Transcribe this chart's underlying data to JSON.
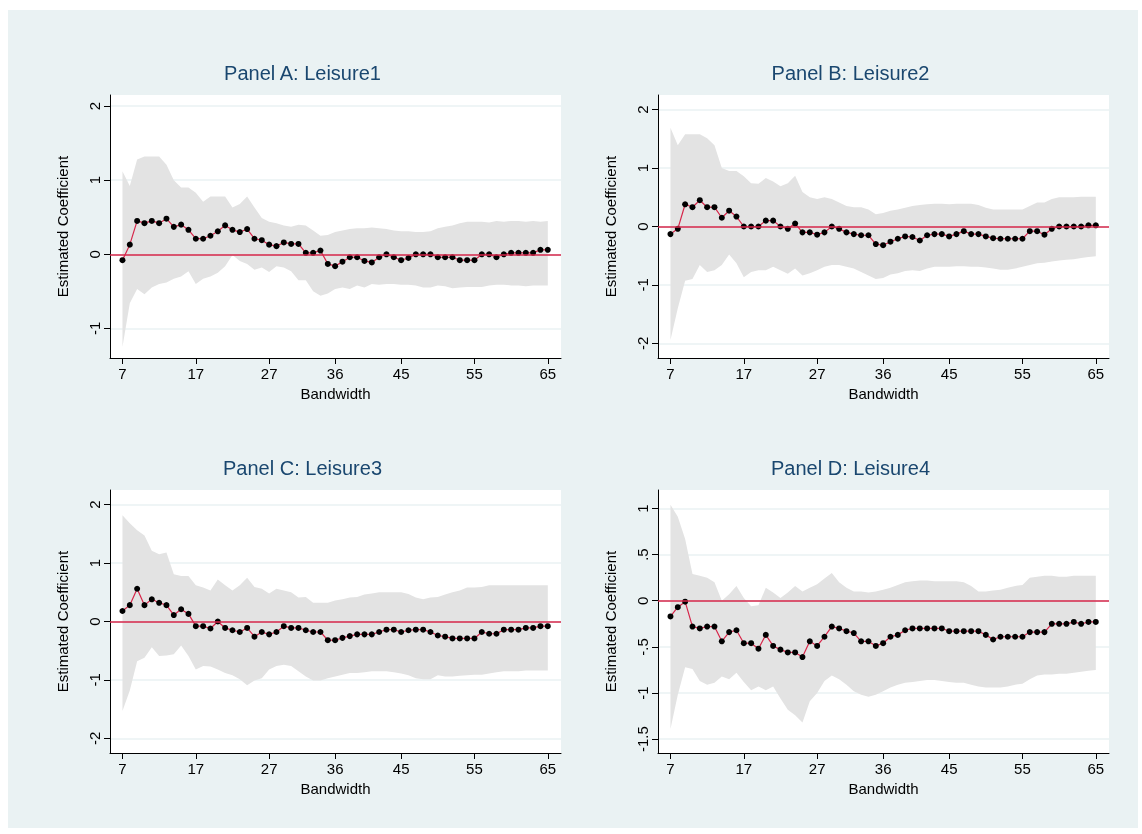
{
  "chart_data": [
    {
      "type": "line",
      "title": "Panel A: Leisure1",
      "xlabel": "Bandwidth",
      "ylabel": "Estimated Coefficient",
      "x": [
        7,
        8,
        9,
        10,
        11,
        12,
        13,
        14,
        15,
        16,
        17,
        18,
        19,
        20,
        21,
        22,
        23,
        24,
        25,
        26,
        27,
        28,
        29,
        30,
        31,
        32,
        33,
        34,
        35,
        36,
        37,
        38,
        39,
        40,
        41,
        42,
        43,
        44,
        45,
        46,
        47,
        48,
        49,
        50,
        51,
        52,
        53,
        54,
        55,
        56,
        57,
        58,
        59,
        60,
        61,
        62,
        63,
        64,
        65
      ],
      "xlim": [
        5.3,
        66.8
      ],
      "xticks": [
        7,
        17,
        27,
        36,
        45,
        55,
        65
      ],
      "ylim": [
        -1.4,
        2.15
      ],
      "yticks": [
        -1,
        0,
        1,
        2
      ],
      "grid": "y",
      "marker": "circle",
      "line_style": "solid",
      "ref_lines": [
        {
          "axis": "y",
          "value": 0,
          "color": "#d6264a"
        }
      ],
      "series": [
        {
          "color": "#000000",
          "values": [
            -0.08,
            0.13,
            0.45,
            0.42,
            0.45,
            0.42,
            0.48,
            0.37,
            0.4,
            0.33,
            0.21,
            0.21,
            0.25,
            0.31,
            0.39,
            0.33,
            0.3,
            0.34,
            0.21,
            0.19,
            0.13,
            0.11,
            0.16,
            0.14,
            0.14,
            0.02,
            0.02,
            0.05,
            -0.13,
            -0.16,
            -0.1,
            -0.04,
            -0.04,
            -0.09,
            -0.11,
            -0.04,
            0,
            -0.04,
            -0.08,
            -0.05,
            0,
            0,
            0,
            -0.04,
            -0.04,
            -0.04,
            -0.08,
            -0.08,
            -0.08,
            0,
            0,
            -0.04,
            0,
            0.02,
            0.02,
            0.02,
            0.02,
            0.06,
            0.06
          ],
          "upper": [
            1.12,
            0.92,
            1.28,
            1.32,
            1.32,
            1.32,
            1.21,
            1.0,
            0.9,
            0.9,
            0.83,
            0.71,
            0.78,
            0.78,
            0.78,
            0.63,
            0.68,
            0.78,
            0.63,
            0.49,
            0.44,
            0.42,
            0.39,
            0.37,
            0.4,
            0.39,
            0.32,
            0.25,
            0.26,
            0.3,
            0.32,
            0.34,
            0.35,
            0.35,
            0.36,
            0.35,
            0.34,
            0.32,
            0.31,
            0.31,
            0.3,
            0.3,
            0.31,
            0.35,
            0.37,
            0.39,
            0.42,
            0.44,
            0.44,
            0.44,
            0.43,
            0.45,
            0.44,
            0.45,
            0.45,
            0.44,
            0.45,
            0.44,
            0.45
          ],
          "lower": [
            -1.25,
            -0.66,
            -0.47,
            -0.54,
            -0.45,
            -0.4,
            -0.38,
            -0.33,
            -0.3,
            -0.23,
            -0.4,
            -0.33,
            -0.3,
            -0.25,
            -0.16,
            -0.01,
            -0.09,
            -0.13,
            -0.21,
            -0.18,
            -0.24,
            -0.16,
            -0.18,
            -0.23,
            -0.35,
            -0.35,
            -0.5,
            -0.56,
            -0.53,
            -0.47,
            -0.45,
            -0.47,
            -0.42,
            -0.45,
            -0.4,
            -0.41,
            -0.4,
            -0.4,
            -0.41,
            -0.41,
            -0.42,
            -0.45,
            -0.45,
            -0.42,
            -0.43,
            -0.46,
            -0.45,
            -0.44,
            -0.44,
            -0.44,
            -0.42,
            -0.41,
            -0.41,
            -0.42,
            -0.42,
            -0.43,
            -0.42,
            -0.42,
            -0.42
          ]
        }
      ]
    },
    {
      "type": "line",
      "title": "Panel B: Leisure2",
      "xlabel": "Bandwidth",
      "ylabel": "Estimated Coefficient",
      "x": [
        7,
        8,
        9,
        10,
        11,
        12,
        13,
        14,
        15,
        16,
        17,
        18,
        19,
        20,
        21,
        22,
        23,
        24,
        25,
        26,
        27,
        28,
        29,
        30,
        31,
        32,
        33,
        34,
        35,
        36,
        37,
        38,
        39,
        40,
        41,
        42,
        43,
        44,
        45,
        46,
        47,
        48,
        49,
        50,
        51,
        52,
        53,
        54,
        55,
        56,
        57,
        58,
        59,
        60,
        61,
        62,
        63,
        64,
        65
      ],
      "xlim": [
        5.3,
        66.8
      ],
      "xticks": [
        7,
        17,
        27,
        36,
        45,
        55,
        65
      ],
      "ylim": [
        -2.25,
        2.25
      ],
      "yticks": [
        -2,
        -1,
        0,
        1,
        2
      ],
      "grid": "y",
      "marker": "circle",
      "line_style": "solid",
      "ref_lines": [
        {
          "axis": "y",
          "value": 0,
          "color": "#d6264a"
        }
      ],
      "series": [
        {
          "color": "#000000",
          "values": [
            -0.13,
            -0.04,
            0.38,
            0.33,
            0.45,
            0.33,
            0.33,
            0.15,
            0.27,
            0.17,
            0,
            0,
            0,
            0.1,
            0.1,
            0,
            -0.04,
            0.05,
            -0.1,
            -0.1,
            -0.14,
            -0.1,
            0,
            -0.04,
            -0.1,
            -0.13,
            -0.15,
            -0.15,
            -0.3,
            -0.32,
            -0.26,
            -0.21,
            -0.17,
            -0.18,
            -0.24,
            -0.15,
            -0.13,
            -0.13,
            -0.17,
            -0.13,
            -0.08,
            -0.13,
            -0.13,
            -0.17,
            -0.2,
            -0.21,
            -0.21,
            -0.21,
            -0.21,
            -0.08,
            -0.08,
            -0.14,
            -0.04,
            0,
            0,
            0,
            0,
            0.02,
            0.02
          ],
          "upper": [
            1.69,
            1.39,
            1.58,
            1.58,
            1.58,
            1.51,
            1.39,
            1.0,
            0.95,
            0.95,
            0.86,
            0.74,
            0.73,
            0.83,
            0.77,
            0.69,
            0.74,
            0.87,
            0.59,
            0.5,
            0.47,
            0.5,
            0.47,
            0.41,
            0.35,
            0.33,
            0.33,
            0.29,
            0.21,
            0.23,
            0.27,
            0.29,
            0.32,
            0.35,
            0.37,
            0.38,
            0.39,
            0.39,
            0.38,
            0.39,
            0.39,
            0.39,
            0.37,
            0.32,
            0.29,
            0.29,
            0.29,
            0.29,
            0.29,
            0.35,
            0.41,
            0.41,
            0.47,
            0.5,
            0.5,
            0.5,
            0.51,
            0.51,
            0.51
          ],
          "lower": [
            -1.94,
            -1.4,
            -0.93,
            -0.9,
            -0.66,
            -0.78,
            -0.75,
            -0.66,
            -0.48,
            -0.63,
            -0.87,
            -0.78,
            -0.75,
            -0.75,
            -0.69,
            -0.75,
            -0.81,
            -0.72,
            -0.84,
            -0.8,
            -0.75,
            -0.69,
            -0.66,
            -0.66,
            -0.69,
            -0.72,
            -0.78,
            -0.84,
            -0.9,
            -0.88,
            -0.82,
            -0.8,
            -0.76,
            -0.75,
            -0.76,
            -0.72,
            -0.69,
            -0.69,
            -0.69,
            -0.68,
            -0.68,
            -0.69,
            -0.69,
            -0.7,
            -0.72,
            -0.74,
            -0.74,
            -0.72,
            -0.69,
            -0.66,
            -0.63,
            -0.62,
            -0.6,
            -0.58,
            -0.57,
            -0.56,
            -0.54,
            -0.52,
            -0.51
          ]
        }
      ]
    },
    {
      "type": "line",
      "title": "Panel C: Leisure3",
      "xlabel": "Bandwidth",
      "ylabel": "Estimated Coefficient",
      "x": [
        7,
        8,
        9,
        10,
        11,
        12,
        13,
        14,
        15,
        16,
        17,
        18,
        19,
        20,
        21,
        22,
        23,
        24,
        25,
        26,
        27,
        28,
        29,
        30,
        31,
        32,
        33,
        34,
        35,
        36,
        37,
        38,
        39,
        40,
        41,
        42,
        43,
        44,
        45,
        46,
        47,
        48,
        49,
        50,
        51,
        52,
        53,
        54,
        55,
        56,
        57,
        58,
        59,
        60,
        61,
        62,
        63,
        64,
        65
      ],
      "xlim": [
        5.3,
        66.8
      ],
      "xticks": [
        7,
        17,
        27,
        36,
        45,
        55,
        65
      ],
      "ylim": [
        -2.25,
        2.25
      ],
      "yticks": [
        -2,
        -1,
        0,
        1,
        2
      ],
      "grid": "y",
      "marker": "circle",
      "line_style": "solid",
      "ref_lines": [
        {
          "axis": "y",
          "value": 0,
          "color": "#d6264a"
        }
      ],
      "series": [
        {
          "color": "#000000",
          "values": [
            0.18,
            0.28,
            0.56,
            0.28,
            0.38,
            0.32,
            0.28,
            0.11,
            0.21,
            0.13,
            -0.08,
            -0.08,
            -0.12,
            0,
            -0.11,
            -0.15,
            -0.18,
            -0.11,
            -0.26,
            -0.18,
            -0.22,
            -0.18,
            -0.08,
            -0.11,
            -0.11,
            -0.15,
            -0.18,
            -0.18,
            -0.32,
            -0.32,
            -0.28,
            -0.25,
            -0.22,
            -0.22,
            -0.22,
            -0.18,
            -0.14,
            -0.14,
            -0.18,
            -0.15,
            -0.14,
            -0.14,
            -0.18,
            -0.24,
            -0.26,
            -0.29,
            -0.29,
            -0.29,
            -0.29,
            -0.18,
            -0.21,
            -0.21,
            -0.14,
            -0.14,
            -0.14,
            -0.11,
            -0.11,
            -0.08,
            -0.08
          ],
          "upper": [
            1.82,
            1.68,
            1.56,
            1.47,
            1.21,
            1.15,
            1.18,
            0.81,
            0.78,
            0.78,
            0.62,
            0.58,
            0.53,
            0.72,
            0.62,
            0.53,
            0.62,
            0.75,
            0.59,
            0.56,
            0.48,
            0.56,
            0.53,
            0.5,
            0.41,
            0.42,
            0.32,
            0.32,
            0.32,
            0.36,
            0.38,
            0.41,
            0.42,
            0.46,
            0.48,
            0.5,
            0.5,
            0.5,
            0.5,
            0.47,
            0.41,
            0.38,
            0.41,
            0.42,
            0.46,
            0.5,
            0.53,
            0.58,
            0.58,
            0.59,
            0.62,
            0.62,
            0.62,
            0.62,
            0.62,
            0.62,
            0.62,
            0.62,
            0.62
          ],
          "lower": [
            -1.53,
            -1.18,
            -0.68,
            -0.62,
            -0.44,
            -0.59,
            -0.58,
            -0.56,
            -0.41,
            -0.59,
            -0.82,
            -0.76,
            -0.77,
            -0.82,
            -0.88,
            -0.92,
            -0.99,
            -1.09,
            -1.01,
            -0.97,
            -0.82,
            -0.76,
            -0.74,
            -0.76,
            -0.85,
            -0.94,
            -1.01,
            -1.01,
            -0.97,
            -0.94,
            -0.91,
            -0.88,
            -0.88,
            -0.87,
            -0.85,
            -0.85,
            -0.85,
            -0.87,
            -0.89,
            -0.92,
            -0.97,
            -0.99,
            -0.99,
            -0.92,
            -0.94,
            -0.94,
            -0.93,
            -0.92,
            -0.91,
            -0.91,
            -0.89,
            -0.87,
            -0.85,
            -0.85,
            -0.85,
            -0.84,
            -0.84,
            -0.84,
            -0.84
          ]
        }
      ]
    },
    {
      "type": "line",
      "title": "Panel D: Leisure4",
      "xlabel": "Bandwidth",
      "ylabel": "Estimated Coefficient",
      "x": [
        7,
        8,
        9,
        10,
        11,
        12,
        13,
        14,
        15,
        16,
        17,
        18,
        19,
        20,
        21,
        22,
        23,
        24,
        25,
        26,
        27,
        28,
        29,
        30,
        31,
        32,
        33,
        34,
        35,
        36,
        37,
        38,
        39,
        40,
        41,
        42,
        43,
        44,
        45,
        46,
        47,
        48,
        49,
        50,
        51,
        52,
        53,
        54,
        55,
        56,
        57,
        58,
        59,
        60,
        61,
        62,
        63,
        64,
        65
      ],
      "xlim": [
        5.3,
        66.8
      ],
      "xticks": [
        7,
        17,
        27,
        36,
        45,
        55,
        65
      ],
      "ylim": [
        -1.65,
        1.2
      ],
      "yticks": [
        {
          "value": -1.5,
          "label": "-1.5"
        },
        -1,
        {
          "value": -0.5,
          "label": "-.5"
        },
        0,
        {
          "value": 0.5,
          "label": ".5"
        },
        1
      ],
      "grid": "y",
      "marker": "circle",
      "line_style": "solid",
      "ref_lines": [
        {
          "axis": "y",
          "value": 0,
          "color": "#d6264a"
        }
      ],
      "series": [
        {
          "color": "#000000",
          "values": [
            -0.17,
            -0.07,
            -0.01,
            -0.28,
            -0.3,
            -0.28,
            -0.28,
            -0.44,
            -0.34,
            -0.32,
            -0.46,
            -0.46,
            -0.52,
            -0.37,
            -0.49,
            -0.53,
            -0.56,
            -0.56,
            -0.61,
            -0.44,
            -0.49,
            -0.39,
            -0.28,
            -0.3,
            -0.33,
            -0.35,
            -0.44,
            -0.44,
            -0.49,
            -0.46,
            -0.39,
            -0.37,
            -0.32,
            -0.3,
            -0.3,
            -0.3,
            -0.3,
            -0.3,
            -0.33,
            -0.33,
            -0.33,
            -0.33,
            -0.33,
            -0.37,
            -0.42,
            -0.39,
            -0.39,
            -0.39,
            -0.39,
            -0.34,
            -0.34,
            -0.34,
            -0.25,
            -0.25,
            -0.25,
            -0.23,
            -0.25,
            -0.23,
            -0.23
          ],
          "upper": [
            1.04,
            0.91,
            0.67,
            0.29,
            0.27,
            0.25,
            0.2,
            0,
            0.07,
            0.16,
            0.03,
            -0.06,
            -0.05,
            0.14,
            0.09,
            0.03,
            0.09,
            0.16,
            0.1,
            0.14,
            0.18,
            0.24,
            0.3,
            0.2,
            0.14,
            0.1,
            0.1,
            0.09,
            0.1,
            0.12,
            0.14,
            0.17,
            0.2,
            0.21,
            0.22,
            0.22,
            0.21,
            0.21,
            0.21,
            0.21,
            0.2,
            0.16,
            0.1,
            0.1,
            0.11,
            0.12,
            0.14,
            0.16,
            0.17,
            0.25,
            0.26,
            0.27,
            0.27,
            0.26,
            0.26,
            0.27,
            0.27,
            0.27,
            0.27
          ],
          "lower": [
            -1.39,
            -1.02,
            -0.72,
            -0.74,
            -0.87,
            -0.91,
            -0.89,
            -0.82,
            -0.85,
            -0.78,
            -0.88,
            -0.97,
            -0.93,
            -0.97,
            -0.93,
            -1.06,
            -1.18,
            -1.24,
            -1.32,
            -1.09,
            -1.0,
            -0.87,
            -0.81,
            -0.85,
            -0.91,
            -0.98,
            -1.02,
            -1.04,
            -1.02,
            -0.98,
            -0.94,
            -0.91,
            -0.89,
            -0.88,
            -0.87,
            -0.86,
            -0.86,
            -0.87,
            -0.88,
            -0.89,
            -0.89,
            -0.91,
            -0.93,
            -0.94,
            -0.94,
            -0.94,
            -0.93,
            -0.91,
            -0.9,
            -0.85,
            -0.81,
            -0.8,
            -0.8,
            -0.79,
            -0.79,
            -0.78,
            -0.77,
            -0.76,
            -0.75
          ]
        }
      ]
    }
  ]
}
